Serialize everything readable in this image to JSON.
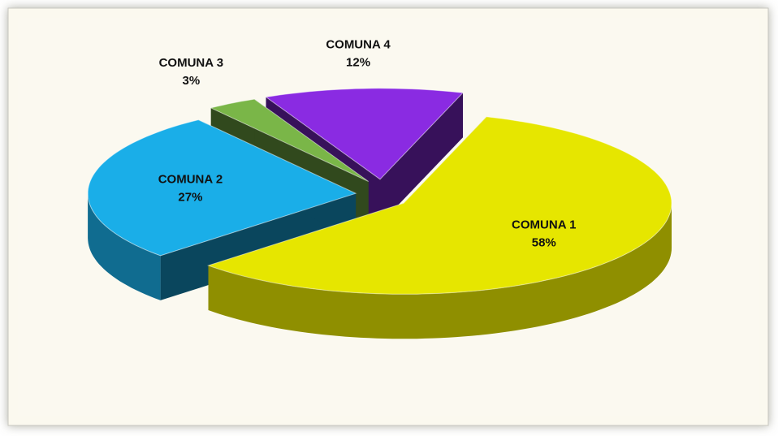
{
  "chart_data": {
    "type": "pie",
    "categories": [
      "COMUNA 1",
      "COMUNA 2",
      "COMUNA 3",
      "COMUNA 4"
    ],
    "values": [
      58,
      27,
      3,
      12
    ],
    "value_labels": [
      "58%",
      "27%",
      "3%",
      "12%"
    ],
    "colors": [
      "#e6e600",
      "#1aaee8",
      "#7ab648",
      "#8a2be2"
    ]
  }
}
